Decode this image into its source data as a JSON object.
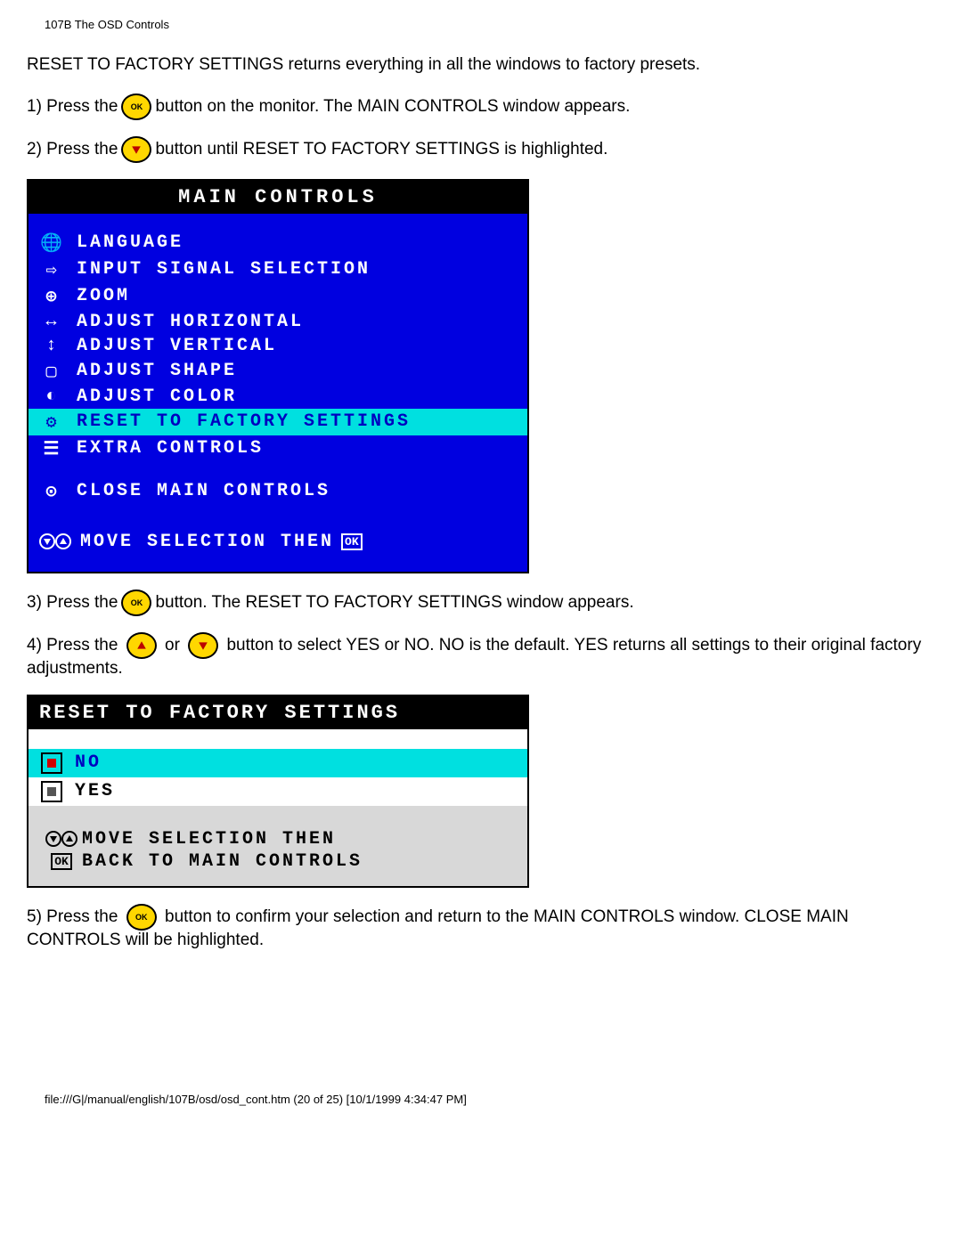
{
  "header": "107B The OSD Controls",
  "intro": "RESET TO FACTORY SETTINGS returns everything in all the windows to factory presets.",
  "steps": {
    "s1a": "1) Press the",
    "s1b": "button on the monitor. The MAIN CONTROLS window appears.",
    "s2a": "2) Press the",
    "s2b": "button until RESET TO FACTORY SETTINGS is highlighted.",
    "s3a": "3) Press the",
    "s3b": "button. The RESET TO FACTORY SETTINGS window appears.",
    "s4a": "4) Press the",
    "s4b": "or",
    "s4c": "button to select YES or NO. NO is the default. YES returns all settings to their original factory adjustments.",
    "s5a": "5) Press the",
    "s5b": "button to confirm your selection and return to the MAIN CONTROLS window. CLOSE MAIN CONTROLS will be highlighted."
  },
  "osd_main": {
    "title": "MAIN CONTROLS",
    "items": [
      {
        "icon": "🌐",
        "label": "LANGUAGE",
        "hl": false
      },
      {
        "icon": "⇨",
        "label": "INPUT SIGNAL SELECTION",
        "hl": false
      },
      {
        "icon": "⊕",
        "label": "ZOOM",
        "hl": false
      },
      {
        "icon": "↔",
        "label": "ADJUST HORIZONTAL",
        "hl": false
      },
      {
        "icon": "↕",
        "label": "ADJUST VERTICAL",
        "hl": false
      },
      {
        "icon": "▢",
        "label": "ADJUST SHAPE",
        "hl": false
      },
      {
        "icon": "◐",
        "label": "ADJUST COLOR",
        "hl": false
      },
      {
        "icon": "⚙",
        "label": "RESET TO FACTORY SETTINGS",
        "hl": true
      },
      {
        "icon": "☰",
        "label": "EXTRA CONTROLS",
        "hl": false
      }
    ],
    "close": "CLOSE MAIN CONTROLS",
    "footer": "MOVE SELECTION THEN",
    "colors": {
      "bg": "#0000e0",
      "text": "#ffffff",
      "hl_bg": "#00e0e0",
      "hl_text": "#0000c0"
    }
  },
  "osd_reset": {
    "title": "RESET TO FACTORY SETTINGS",
    "options": [
      {
        "label": "NO",
        "selected": true
      },
      {
        "label": "YES",
        "selected": false
      }
    ],
    "footer1": "MOVE SELECTION THEN",
    "footer2": "BACK TO MAIN CONTROLS",
    "colors": {
      "sel_bg": "#00e0e0",
      "sel_text": "#0000c0",
      "footer_bg": "#d8d8d8"
    }
  },
  "footer_path": "file:///G|/manual/english/107B/osd/osd_cont.htm (20 of 25) [10/1/1999 4:34:47 PM]"
}
